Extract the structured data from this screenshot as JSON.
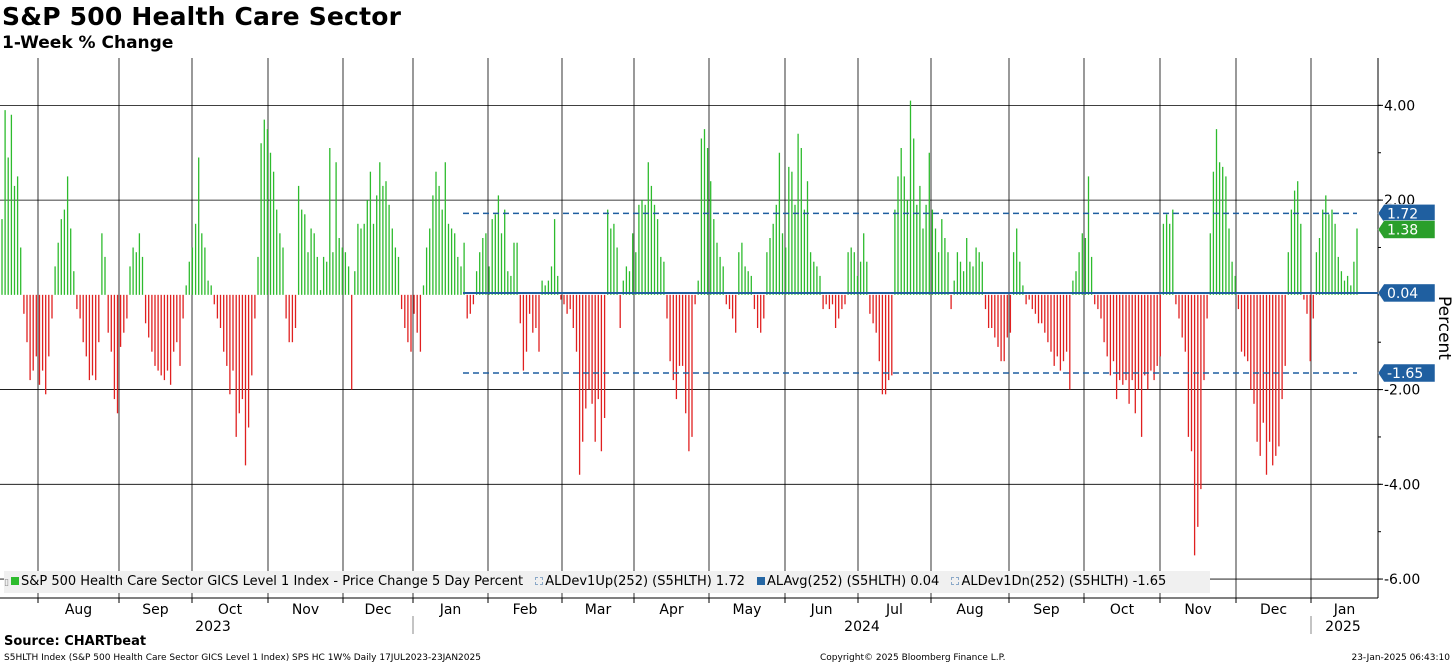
{
  "chart_data": {
    "type": "bar",
    "title": "S&P 500 Health Care Sector",
    "subtitle": "1-Week % Change",
    "ylabel": "Percent",
    "ylim": [
      -6.4,
      5
    ],
    "y_ticks": [
      "4.00",
      "2.00",
      "-2.00",
      "-4.00",
      "-6.00"
    ],
    "y_tick_values": [
      4,
      2,
      -2,
      -4,
      -6
    ],
    "x_month_labels": [
      "Aug",
      "Sep",
      "Oct",
      "Nov",
      "Dec",
      "Jan",
      "Feb",
      "Mar",
      "Apr",
      "May",
      "Jun",
      "Jul",
      "Aug",
      "Sep",
      "Oct",
      "Nov",
      "Dec",
      "Jan"
    ],
    "x_year_labels": [
      "2023",
      "2024",
      "2025"
    ],
    "series_name": "S&P 500 Health Care Sector GICS Level 1 Index - Price Change 5 Day Percent",
    "positive_color": "#2dbb2d",
    "negative_color": "#e02020",
    "values": [
      1.6,
      3.9,
      2.9,
      3.8,
      2.3,
      2.5,
      1.0,
      -0.4,
      -1.0,
      -1.8,
      -1.6,
      -1.3,
      -1.9,
      -1.6,
      -2.1,
      -1.3,
      -0.5,
      0.6,
      1.1,
      1.6,
      1.8,
      2.5,
      1.4,
      0.5,
      -0.3,
      -0.5,
      -1.0,
      -1.3,
      -1.8,
      -1.7,
      -1.8,
      -1.0,
      1.3,
      0.8,
      -0.8,
      -1.2,
      -2.2,
      -2.5,
      -1.1,
      -0.8,
      -0.5,
      0.6,
      1.0,
      0.9,
      1.3,
      0.8,
      -0.6,
      -0.9,
      -1.2,
      -1.5,
      -1.6,
      -1.7,
      -1.8,
      -1.6,
      -1.9,
      -1.2,
      -1.0,
      -1.5,
      -0.5,
      0.2,
      0.7,
      1.0,
      1.5,
      2.9,
      1.3,
      1.0,
      0.3,
      0.2,
      -0.2,
      -0.5,
      -0.7,
      -1.2,
      -1.5,
      -2.1,
      -1.6,
      -3.0,
      -2.5,
      -2.2,
      -3.6,
      -2.8,
      -1.7,
      -0.5,
      0.8,
      3.2,
      3.7,
      3.5,
      3.0,
      2.6,
      1.8,
      1.3,
      1.0,
      -0.5,
      -1.0,
      -1.0,
      -0.7,
      2.3,
      1.8,
      1.7,
      0.9,
      1.4,
      1.3,
      0.8,
      0.1,
      0.8,
      0.7,
      3.1,
      0.9,
      2.8,
      1.2,
      1.0,
      0.9,
      0.6,
      -2.0,
      0.5,
      1.5,
      1.4,
      1.5,
      2.0,
      2.6,
      1.5,
      2.1,
      2.8,
      2.3,
      2.4,
      1.9,
      1.4,
      1.0,
      0.8,
      -0.3,
      -0.7,
      -1.0,
      -1.2,
      -0.4,
      -0.8,
      -1.2,
      0.2,
      1.0,
      1.4,
      2.1,
      2.6,
      2.3,
      1.8,
      2.8,
      1.5,
      1.4,
      1.3,
      0.8,
      0.6,
      1.1,
      -0.5,
      -0.4,
      -0.2,
      0.5,
      0.9,
      1.2,
      1.3,
      0.6,
      1.6,
      1.7,
      2.1,
      1.3,
      1.8,
      0.5,
      0.4,
      1.1,
      1.1,
      -0.6,
      -1.6,
      -1.2,
      -0.4,
      -0.8,
      -0.7,
      -1.2,
      0.3,
      0.2,
      0.3,
      0.6,
      1.6,
      0.4,
      -0.1,
      -0.2,
      -0.4,
      -0.3,
      -0.7,
      -1.2,
      -3.8,
      -3.1,
      -2.4,
      -2.0,
      -2.3,
      -3.1,
      -2.2,
      -3.3,
      -2.6,
      1.8,
      1.4,
      1.5,
      1.0,
      -0.7,
      0.3,
      0.6,
      0.5,
      1.3,
      0.9,
      1.9,
      2.0,
      1.9,
      2.8,
      2.3,
      1.9,
      1.6,
      0.8,
      0.7,
      -0.5,
      -1.4,
      -1.8,
      -2.2,
      -1.5,
      -1.5,
      -2.5,
      -3.3,
      -3.0,
      -0.2,
      0.3,
      3.3,
      3.5,
      3.1,
      2.4,
      1.6,
      1.1,
      0.8,
      0.6,
      -0.2,
      -0.3,
      -0.5,
      -0.8,
      0.9,
      1.1,
      0.6,
      0.5,
      0.4,
      -0.3,
      -0.7,
      -0.8,
      -0.5,
      0.9,
      1.2,
      1.5,
      1.9,
      3.0,
      1.3,
      1.0,
      2.7,
      2.6,
      1.9,
      3.4,
      3.1,
      1.8,
      2.4,
      0.9,
      0.7,
      0.6,
      0.4,
      -0.3,
      -0.2,
      -0.3,
      -0.2,
      -0.7,
      -0.5,
      -0.3,
      -0.2,
      0.9,
      1.0,
      0.9,
      0.4,
      0.7,
      1.3,
      0.7,
      -0.4,
      -0.6,
      -0.8,
      -1.4,
      -2.1,
      -2.1,
      -1.8,
      -1.7,
      1.8,
      2.5,
      3.1,
      2.5,
      2.0,
      4.1,
      3.3,
      1.9,
      2.3,
      1.4,
      1.9,
      3.0,
      1.8,
      1.4,
      0.9,
      1.6,
      1.2,
      0.9,
      -0.3,
      0.3,
      0.9,
      0.7,
      0.5,
      1.2,
      0.7,
      0.6,
      1.0,
      0.9,
      0.7,
      -0.3,
      -0.7,
      -0.7,
      -0.9,
      -1.1,
      -1.4,
      -1.4,
      -0.9,
      -0.8,
      0.9,
      1.4,
      0.7,
      0.2,
      -0.2,
      -0.1,
      -0.3,
      -0.4,
      -0.6,
      -0.6,
      -0.8,
      -1.0,
      -1.2,
      -1.5,
      -1.3,
      -1.6,
      -1.4,
      -1.2,
      -2.0,
      0.3,
      0.5,
      0.9,
      1.3,
      1.2,
      2.5,
      0.8,
      -0.2,
      -0.3,
      -0.5,
      -1.0,
      -1.3,
      -1.7,
      -1.4,
      -2.2,
      -1.8,
      -1.9,
      -1.8,
      -2.3,
      -1.8,
      -2.5,
      -2.0,
      -3.0,
      -1.7,
      -2.0,
      -1.6,
      -1.8,
      -1.5,
      -1.3,
      1.5,
      1.7,
      1.5,
      1.8,
      -0.2,
      -0.5,
      -0.9,
      -1.2,
      -3.0,
      -3.3,
      -5.5,
      -4.9,
      -4.1,
      -1.8,
      -0.5,
      1.3,
      2.6,
      3.5,
      2.8,
      2.7,
      2.5,
      1.4,
      0.7,
      0.4,
      -0.3,
      -1.2,
      -1.3,
      -1.4,
      -2.0,
      -2.3,
      -3.1,
      -3.4,
      -2.7,
      -3.8,
      -3.1,
      -3.6,
      -3.4,
      -3.2,
      -2.2,
      -1.5,
      0.9,
      1.8,
      2.2,
      2.4,
      1.5,
      -0.1,
      -0.4,
      -1.4,
      -0.5,
      0.9,
      1.2,
      1.8,
      2.1,
      1.7,
      1.8,
      1.5,
      0.8,
      0.5,
      0.3,
      0.4,
      0.2,
      0.7,
      1.4
    ],
    "bands": [
      {
        "name": "ALDev1Up(252) (S5HLTH)",
        "value": 1.72,
        "label": "1.72",
        "style": "dashed",
        "color": "#1f5fa0"
      },
      {
        "name": "ALAvg(252) (S5HLTH)",
        "value": 0.04,
        "label": "0.04",
        "style": "solid",
        "color": "#1f5fa0"
      },
      {
        "name": "ALDev1Dn(252) (S5HLTH)",
        "value": -1.65,
        "label": "-1.65",
        "style": "dashed",
        "color": "#1f5fa0"
      }
    ],
    "last_value_label": "1.38",
    "last_value": 1.38,
    "legend": [
      {
        "text": "S&P 500 Health Care Sector GICS Level 1 Index - Price Change 5 Day Percent",
        "swatch": "green"
      },
      {
        "text": "ALDev1Up(252) (S5HLTH) 1.72",
        "swatch": "dash"
      },
      {
        "text": "ALAvg(252) (S5HLTH) 0.04",
        "swatch": "blue"
      },
      {
        "text": "ALDev1Dn(252) (S5HLTH) -1.65",
        "swatch": "dash"
      }
    ]
  },
  "footer": {
    "source": "Source: CHARTbeat",
    "left": "S5HLTH Index (S&P 500 Health Care Sector GICS Level 1 Index) SPS HC 1W%  Daily 17JUL2023-23JAN2025",
    "middle": "Copyright© 2025 Bloomberg Finance L.P.",
    "right": "23-Jan-2025 06:43:10"
  }
}
